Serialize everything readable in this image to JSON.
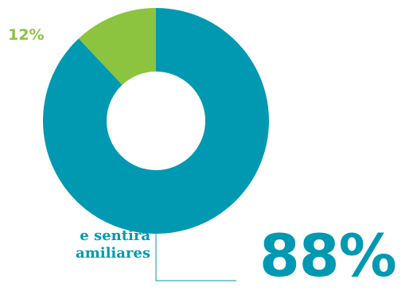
{
  "chart_data": {
    "type": "pie",
    "categories": [
      "",
      ""
    ],
    "values": [
      88,
      12
    ],
    "value_labels": [
      "88%",
      "12%"
    ],
    "colors": [
      "#0099b1",
      "#8cc43f"
    ],
    "title": "",
    "donut": true
  },
  "annotation": {
    "caption_lines": [
      "e sentirá",
      "amiliares"
    ]
  }
}
